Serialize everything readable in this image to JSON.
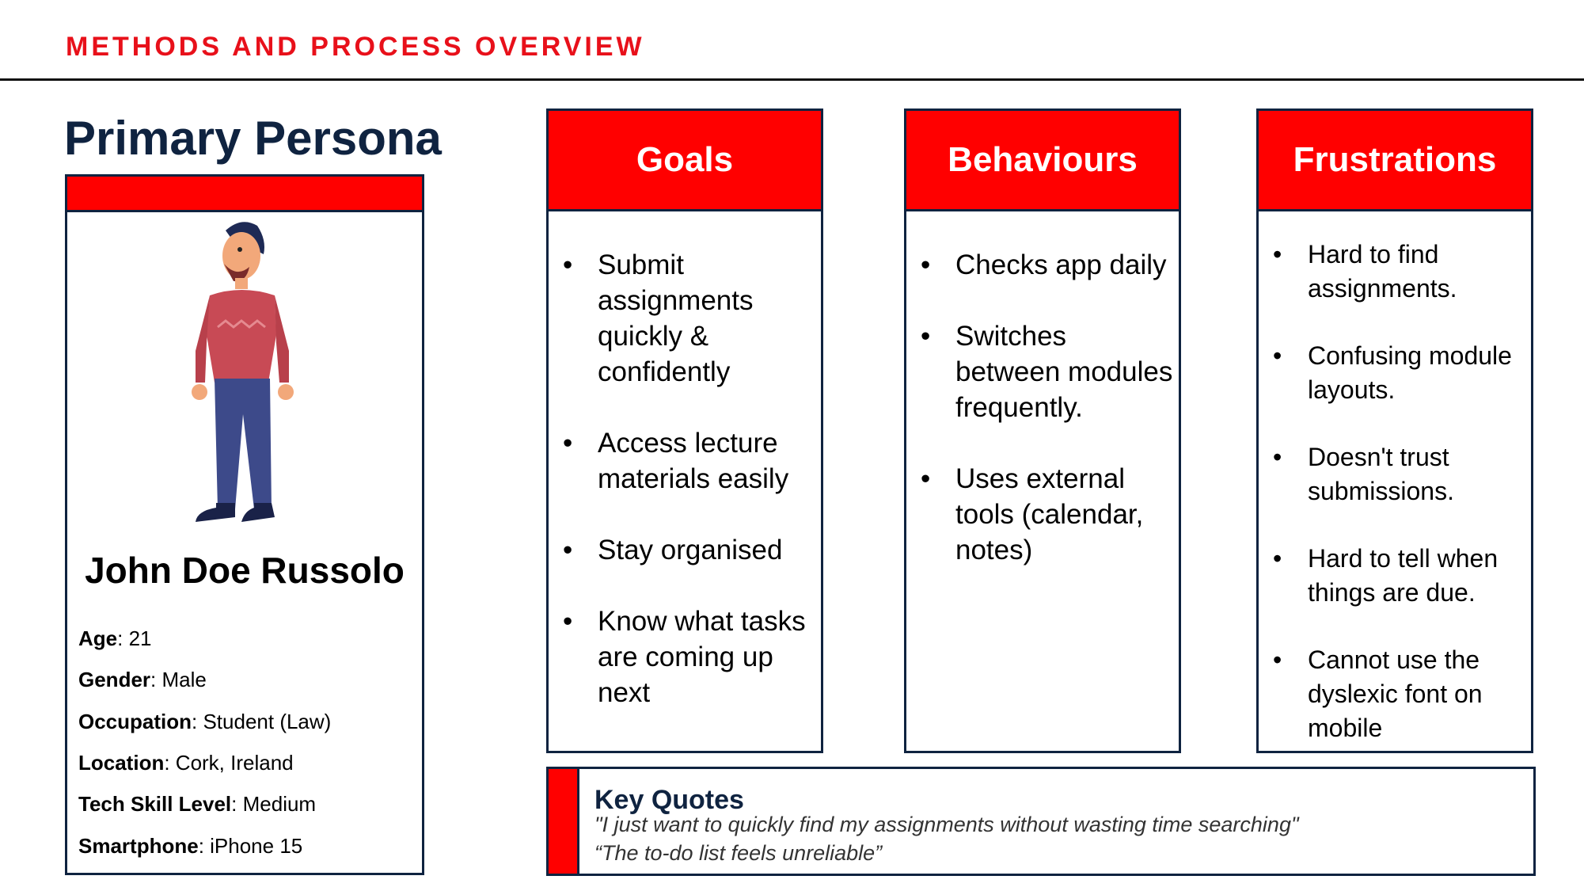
{
  "header": {
    "title": "METHODS AND PROCESS OVERVIEW"
  },
  "persona": {
    "heading": "Primary Persona",
    "name": "John Doe  Russolo",
    "fields": [
      {
        "label": "Age",
        "value": ": 21"
      },
      {
        "label": "Gender",
        "value": ": Male"
      },
      {
        "label": "Occupation",
        "value": ": Student (Law)"
      },
      {
        "label": "Location",
        "value": ": Cork, Ireland"
      },
      {
        "label": "Tech Skill Level",
        "value": ": Medium"
      },
      {
        "label": "Smartphone",
        "value": ": iPhone 15"
      }
    ]
  },
  "columns": [
    {
      "title": "Goals",
      "items": [
        "Submit assignments quickly & confidently",
        "Access lecture materials easily",
        "Stay organised",
        "Know what tasks are coming up next"
      ]
    },
    {
      "title": "Behaviours",
      "items": [
        "Checks app daily",
        "Switches between modules frequently.",
        "Uses external tools (calendar, notes)"
      ]
    },
    {
      "title": "Frustrations",
      "items": [
        "Hard to find assignments.",
        "Confusing module layouts.",
        "Doesn't trust submissions.",
        "Hard to tell when things are due.",
        "Cannot use the dyslexic font on mobile"
      ]
    }
  ],
  "quotes": {
    "title": "Key Quotes",
    "items": [
      "\"I just want to quickly find my assignments without wasting time searching\"",
      "“The to-do list feels unreliable”"
    ]
  }
}
